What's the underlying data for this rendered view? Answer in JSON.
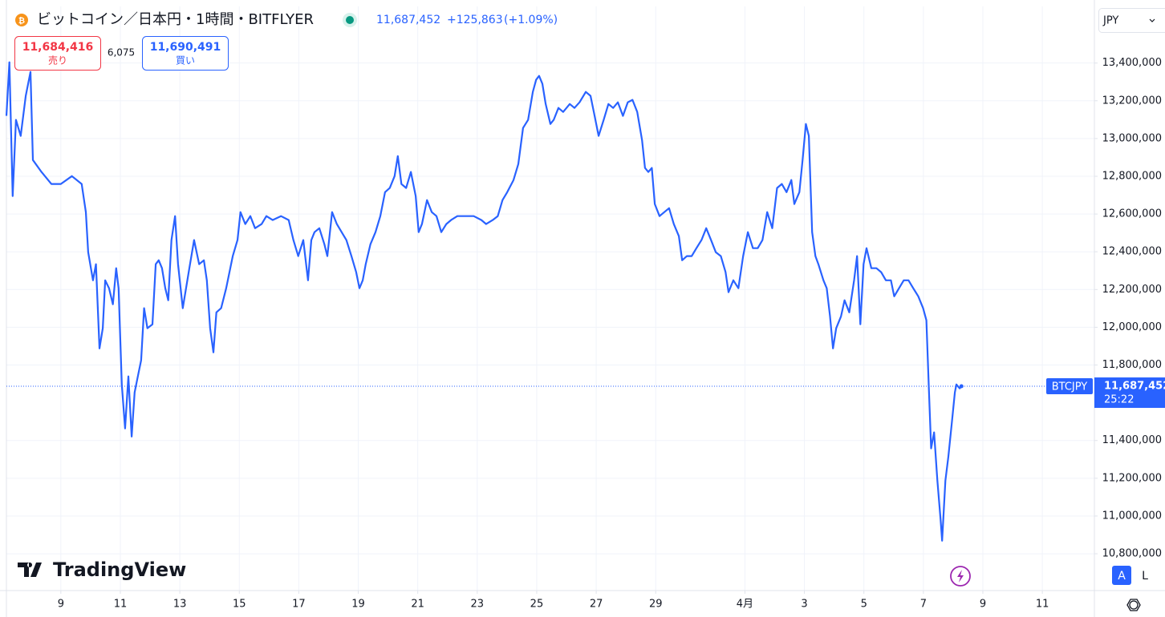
{
  "header": {
    "title": "ビットコイン／日本円・1時間・BITFLYER",
    "price": "11,687,452",
    "change": "+125,863",
    "change_pct": "(+1.09%)",
    "sell_price": "11,684,416",
    "sell_label": "売り",
    "spread": "6,075",
    "buy_price": "11,690,491",
    "buy_label": "買い",
    "currency": "JPY"
  },
  "brand": "TradingView",
  "buttons": {
    "auto": "A",
    "log": "L"
  },
  "chart_data": {
    "type": "line",
    "series": [
      {
        "name": "BTCJPY",
        "color": "#2962ff",
        "x": [
          7.17,
          7.27,
          7.38,
          7.49,
          7.65,
          7.82,
          7.98,
          8.06,
          8.35,
          8.68,
          9.0,
          9.37,
          9.7,
          9.84,
          9.92,
          10.08,
          10.18,
          10.3,
          10.41,
          10.49,
          10.62,
          10.75,
          10.86,
          10.94,
          11.05,
          11.16,
          11.27,
          11.38,
          11.48,
          11.59,
          11.7,
          11.8,
          11.91,
          12.08,
          12.19,
          12.29,
          12.4,
          12.51,
          12.61,
          12.72,
          12.84,
          12.94,
          13.1,
          13.32,
          13.48,
          13.65,
          13.81,
          13.91,
          14.02,
          14.13,
          14.23,
          14.39,
          14.56,
          14.78,
          14.94,
          15.04,
          15.2,
          15.37,
          15.53,
          15.75,
          15.91,
          16.12,
          16.4,
          16.66,
          16.82,
          16.98,
          17.15,
          17.31,
          17.42,
          17.53,
          17.69,
          17.86,
          17.96,
          18.12,
          18.28,
          18.44,
          18.6,
          18.77,
          18.93,
          19.04,
          19.15,
          19.25,
          19.41,
          19.58,
          19.74,
          19.9,
          20.06,
          20.22,
          20.33,
          20.45,
          20.61,
          20.77,
          20.93,
          21.03,
          21.14,
          21.31,
          21.47,
          21.63,
          21.79,
          21.96,
          22.12,
          22.33,
          22.6,
          22.88,
          23.14,
          23.3,
          23.52,
          23.69,
          23.85,
          24.01,
          24.22,
          24.38,
          24.54,
          24.71,
          24.87,
          24.98,
          25.08,
          25.19,
          25.3,
          25.46,
          25.57,
          25.73,
          25.89,
          26.11,
          26.27,
          26.44,
          26.65,
          26.81,
          26.92,
          27.08,
          27.25,
          27.41,
          27.57,
          27.73,
          27.9,
          28.06,
          28.22,
          28.38,
          28.54,
          28.64,
          28.75,
          28.87,
          28.97,
          29.13,
          29.29,
          29.45,
          29.61,
          29.78,
          29.89,
          30.05,
          30.21,
          30.37,
          30.54,
          30.7,
          30.86,
          31.02,
          31.19,
          31.35,
          31.45,
          31.61,
          31.78,
          31.94,
          32.1,
          32.27,
          32.43,
          32.59,
          32.75,
          32.92,
          33.08,
          33.24,
          33.4,
          33.56,
          33.66,
          33.83,
          33.94,
          34.05,
          34.15,
          34.26,
          34.37,
          34.47,
          34.64,
          34.75,
          34.86,
          34.96,
          35.07,
          35.23,
          35.35,
          35.51,
          35.67,
          35.77,
          35.88,
          35.99,
          36.09,
          36.25,
          36.42,
          36.58,
          36.74,
          36.91,
          37.02,
          37.18,
          37.34,
          37.5,
          37.66,
          37.83,
          37.99,
          38.1,
          38.18,
          38.26,
          38.36,
          38.47,
          38.58,
          38.63,
          38.74,
          38.84,
          38.95,
          39.06,
          39.11,
          39.22,
          39.28
        ],
        "values": [
          13120000,
          13404000,
          12695000,
          13099000,
          13014000,
          13226000,
          13353000,
          12886000,
          12823000,
          12759000,
          12759000,
          12801000,
          12759000,
          12610000,
          12398000,
          12249000,
          12334000,
          11888000,
          11995000,
          12249000,
          12207000,
          12122000,
          12313000,
          12207000,
          11697000,
          11464000,
          11740000,
          11421000,
          11655000,
          11740000,
          11825000,
          12101000,
          11995000,
          12016000,
          12334000,
          12355000,
          12313000,
          12207000,
          12143000,
          12462000,
          12589000,
          12334000,
          12101000,
          12313000,
          12462000,
          12334000,
          12355000,
          12249000,
          11995000,
          11867000,
          12079000,
          12101000,
          12207000,
          12377000,
          12462000,
          12610000,
          12547000,
          12589000,
          12525000,
          12547000,
          12589000,
          12568000,
          12589000,
          12568000,
          12462000,
          12377000,
          12462000,
          12249000,
          12462000,
          12504000,
          12525000,
          12440000,
          12377000,
          12610000,
          12547000,
          12504000,
          12462000,
          12377000,
          12292000,
          12207000,
          12249000,
          12334000,
          12440000,
          12504000,
          12589000,
          12716000,
          12738000,
          12801000,
          12907000,
          12759000,
          12738000,
          12823000,
          12695000,
          12504000,
          12547000,
          12674000,
          12610000,
          12589000,
          12504000,
          12547000,
          12568000,
          12589000,
          12589000,
          12589000,
          12568000,
          12547000,
          12568000,
          12589000,
          12674000,
          12716000,
          12780000,
          12865000,
          13056000,
          13099000,
          13247000,
          13311000,
          13332000,
          13290000,
          13183000,
          13077000,
          13099000,
          13162000,
          13141000,
          13183000,
          13162000,
          13192000,
          13247000,
          13226000,
          13141000,
          13014000,
          13099000,
          13183000,
          13162000,
          13192000,
          13120000,
          13192000,
          13205000,
          13141000,
          12992000,
          12844000,
          12823000,
          12844000,
          12653000,
          12589000,
          12610000,
          12631000,
          12547000,
          12483000,
          12355000,
          12377000,
          12377000,
          12419000,
          12462000,
          12525000,
          12462000,
          12398000,
          12377000,
          12292000,
          12186000,
          12249000,
          12207000,
          12377000,
          12504000,
          12419000,
          12419000,
          12462000,
          12610000,
          12525000,
          12738000,
          12759000,
          12716000,
          12780000,
          12653000,
          12716000,
          12886000,
          13077000,
          13014000,
          12504000,
          12377000,
          12334000,
          12249000,
          12207000,
          12058000,
          11888000,
          11995000,
          12058000,
          12143000,
          12079000,
          12249000,
          12377000,
          12016000,
          12334000,
          12419000,
          12313000,
          12313000,
          12292000,
          12249000,
          12249000,
          12164000,
          12207000,
          12249000,
          12249000,
          12207000,
          12164000,
          12101000,
          12037000,
          11697000,
          11358000,
          11443000,
          11188000,
          10976000,
          10869000,
          11188000,
          11315000,
          11485000,
          11655000,
          11697000,
          11676000,
          11687452
        ]
      }
    ],
    "last_price": {
      "value": 11687452,
      "label": "11,687,452"
    },
    "countdown": "25:22",
    "xlim": [
      7.17,
      43.75
    ],
    "ylim": [
      10605000,
      13700000
    ],
    "xticks": [
      9,
      11,
      13,
      15,
      17,
      19,
      21,
      23,
      25,
      27,
      29,
      {
        "value": 32,
        "label": "4月"
      },
      {
        "value": 34,
        "label": "3"
      },
      {
        "value": 36,
        "label": "5"
      },
      {
        "value": 38,
        "label": "7"
      },
      {
        "value": 40,
        "label": "9"
      },
      {
        "value": 42,
        "label": "11"
      }
    ],
    "yticks": [
      {
        "value": 10800000,
        "label": "10,800,000"
      },
      {
        "value": 11000000,
        "label": "11,000,000"
      },
      {
        "value": 11200000,
        "label": "11,200,000"
      },
      {
        "value": 11400000,
        "label": "11,400,000"
      },
      {
        "value": 11800000,
        "label": "11,800,000"
      },
      {
        "value": 12000000,
        "label": "12,000,000"
      },
      {
        "value": 12200000,
        "label": "12,200,000"
      },
      {
        "value": 12400000,
        "label": "12,400,000"
      },
      {
        "value": 12600000,
        "label": "12,600,000"
      },
      {
        "value": 12800000,
        "label": "12,800,000"
      },
      {
        "value": 13000000,
        "label": "13,000,000"
      },
      {
        "value": 13200000,
        "label": "13,200,000"
      },
      {
        "value": 13400000,
        "label": "13,400,000"
      }
    ],
    "grid": true
  }
}
